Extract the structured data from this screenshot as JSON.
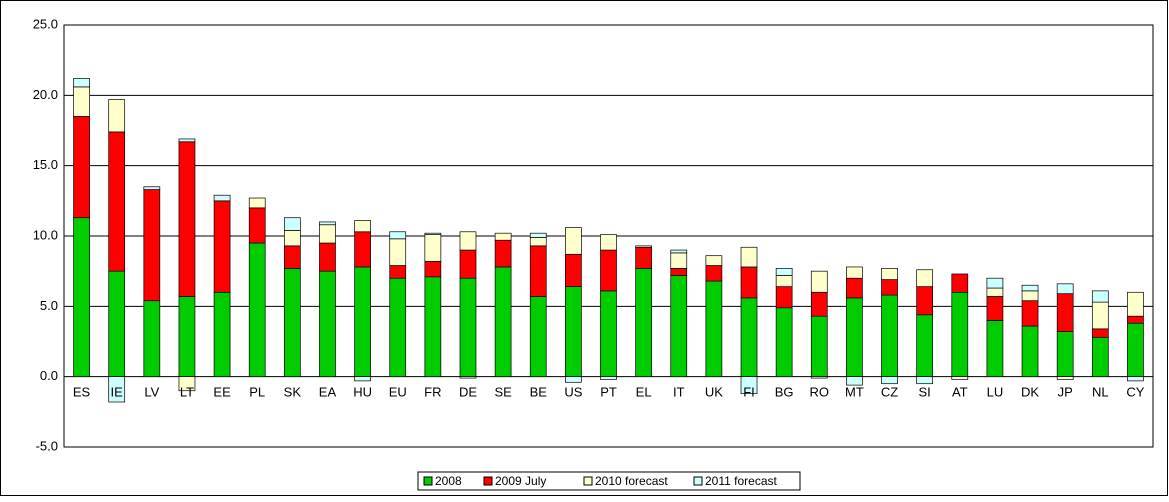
{
  "chart_data": {
    "type": "stacked_bar",
    "categories": [
      "ES",
      "IE",
      "LV",
      "LT",
      "EE",
      "PL",
      "SK",
      "EA",
      "HU",
      "EU",
      "FR",
      "DE",
      "SE",
      "BE",
      "US",
      "PT",
      "EL",
      "IT",
      "UK",
      "FI",
      "BG",
      "RO",
      "MT",
      "CZ",
      "SI",
      "AT",
      "LU",
      "DK",
      "JP",
      "NL",
      "CY"
    ],
    "series": [
      {
        "name": "2008",
        "color": "#00cc00",
        "values": [
          11.3,
          7.5,
          5.4,
          5.7,
          6.0,
          9.5,
          7.7,
          7.5,
          7.8,
          7.0,
          7.1,
          7.0,
          7.8,
          5.7,
          6.4,
          6.1,
          7.7,
          7.2,
          6.8,
          5.6,
          4.9,
          4.3,
          5.6,
          5.8,
          4.4,
          6.0,
          4.0,
          3.6,
          3.2,
          2.8,
          3.8
        ]
      },
      {
        "name": "2009 July",
        "color": "#ff0000",
        "values": [
          7.2,
          9.9,
          7.9,
          11.0,
          6.5,
          2.5,
          1.6,
          2.0,
          2.5,
          0.9,
          1.1,
          2.0,
          1.9,
          3.6,
          2.3,
          2.9,
          1.5,
          0.5,
          1.1,
          2.2,
          1.5,
          1.7,
          1.4,
          1.1,
          2.0,
          1.3,
          1.7,
          1.8,
          2.7,
          0.6,
          0.5
        ]
      },
      {
        "name": "2010 forecast",
        "color": "#ffffcc",
        "values": [
          2.1,
          2.3,
          0.0,
          -1.0,
          0.0,
          0.7,
          1.1,
          1.3,
          0.8,
          1.9,
          1.9,
          1.3,
          0.5,
          0.6,
          1.9,
          1.1,
          0.1,
          1.1,
          0.7,
          1.4,
          0.8,
          1.5,
          0.8,
          0.8,
          1.2,
          -0.2,
          0.6,
          0.7,
          -0.2,
          1.9,
          1.7
        ]
      },
      {
        "name": "2011 forecast",
        "color": "#ccffff",
        "values": [
          0.6,
          -1.8,
          0.2,
          0.2,
          0.4,
          0.0,
          0.9,
          0.2,
          -0.3,
          0.5,
          0.1,
          -0.1,
          0.0,
          0.3,
          -0.4,
          -0.2,
          0.0,
          0.2,
          0.0,
          -1.2,
          0.5,
          -0.1,
          -0.6,
          -0.5,
          -0.5,
          0.0,
          0.7,
          0.4,
          0.7,
          0.8,
          -0.3
        ]
      }
    ],
    "ylim": [
      -5,
      25
    ],
    "yticks": [
      {
        "value": -5,
        "label": "-5.0"
      },
      {
        "value": 0,
        "label": "0.0"
      },
      {
        "value": 5,
        "label": "5.0"
      },
      {
        "value": 10,
        "label": "10.0"
      },
      {
        "value": 15,
        "label": "15.0"
      },
      {
        "value": 20,
        "label": "20.0"
      },
      {
        "value": 25,
        "label": "25.0"
      }
    ],
    "grid": true,
    "legend": "bottom"
  }
}
